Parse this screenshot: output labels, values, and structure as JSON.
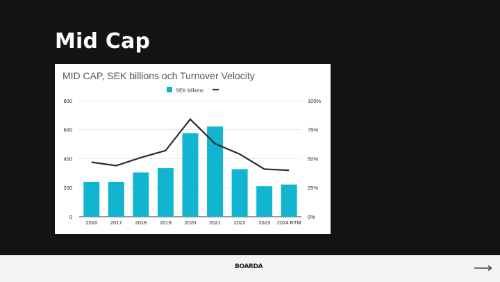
{
  "slide": {
    "title": "Mid Cap"
  },
  "footer": {
    "logo_text": "BOARDA",
    "next_icon": "arrow-right-icon"
  },
  "colors": {
    "background": "#141416",
    "bar": "#12b5d0",
    "line": "#2b2b2b",
    "footer": "#f4f4f4"
  },
  "chart_data": {
    "type": "bar",
    "title": "MID CAP, SEK billions och Turnover Velocity",
    "categories": [
      "2016",
      "2017",
      "2018",
      "2019",
      "2020",
      "2021",
      "2022",
      "2023",
      "2024 RTM"
    ],
    "series": [
      {
        "name": "SEK billions",
        "type": "bar",
        "axis": "left",
        "values": [
          240,
          240,
          305,
          335,
          575,
          622,
          328,
          210,
          222
        ]
      },
      {
        "name": "",
        "type": "line",
        "axis": "right",
        "values": [
          0.47,
          0.44,
          0.51,
          0.57,
          0.84,
          0.63,
          0.54,
          0.41,
          0.4
        ]
      }
    ],
    "y_left": {
      "ticks": [
        0,
        200,
        400,
        600,
        800
      ],
      "tick_labels": [
        "0",
        "200",
        "400",
        "600",
        "800"
      ],
      "lim": [
        0,
        800
      ]
    },
    "y_right": {
      "ticks": [
        0,
        0.25,
        0.5,
        0.75,
        1.0
      ],
      "tick_labels": [
        "0%",
        "25%",
        "50%",
        "75%",
        "100%"
      ],
      "lim": [
        0,
        1
      ]
    },
    "grid": true,
    "legend": "top-center"
  }
}
